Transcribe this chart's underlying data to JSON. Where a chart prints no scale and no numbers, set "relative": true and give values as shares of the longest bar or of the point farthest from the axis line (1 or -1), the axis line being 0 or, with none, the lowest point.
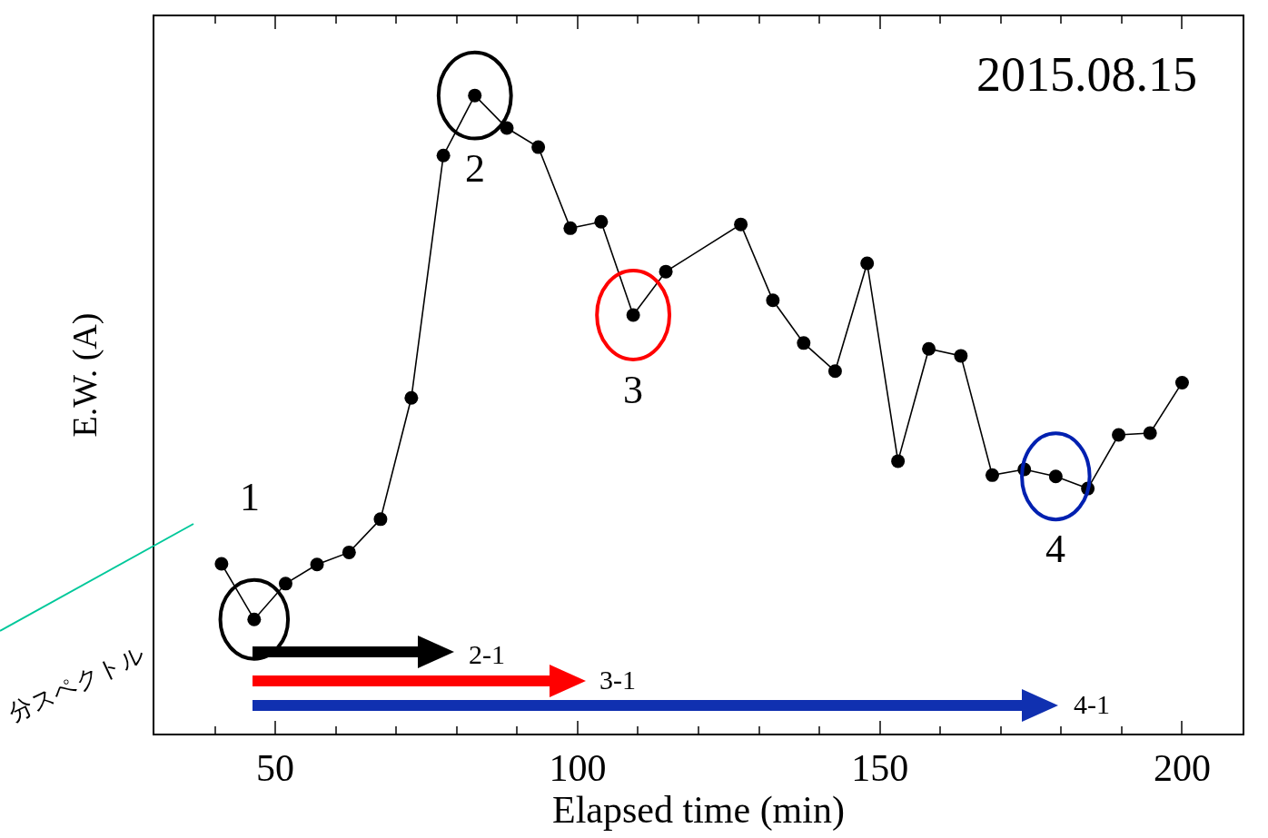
{
  "chart_data": {
    "type": "line",
    "relative": true,
    "xlabel": "Elapsed time (min)",
    "ylabel": "E.W. (A)",
    "x": [
      41.1,
      46.5,
      51.7,
      56.9,
      62.2,
      67.4,
      72.5,
      77.8,
      83.0,
      88.3,
      93.5,
      98.8,
      103.9,
      109.2,
      114.6,
      127.0,
      132.3,
      137.4,
      142.6,
      147.9,
      153.0,
      158.1,
      163.4,
      168.6,
      173.9,
      179.1,
      184.4,
      189.5,
      194.7,
      200
    ],
    "series": [
      {
        "color": "#000000",
        "values": [
          0.266,
          0.179,
          0.235,
          0.265,
          0.284,
          0.336,
          0.526,
          0.906,
          1,
          0.949,
          0.919,
          0.792,
          0.802,
          0.656,
          0.724,
          0.798,
          0.679,
          0.612,
          0.568,
          0.737,
          0.427,
          0.603,
          0.592,
          0.405,
          0.414,
          0.403,
          0.384,
          0.468,
          0.471,
          0.55
        ]
      }
    ],
    "xlim": [
      30,
      210
    ],
    "xticks": [
      50,
      100,
      150,
      200
    ],
    "tick_labels": "x",
    "grid": false,
    "marker": "circle",
    "line_style": "solid",
    "annotations": [
      "2015.08.15",
      {
        "text": "1",
        "x": 46.5,
        "y": 0.179
      },
      {
        "text": "2",
        "x": 83.0,
        "y": 1
      },
      {
        "text": "3",
        "x": 109.2,
        "y": 0.656
      },
      {
        "text": "4",
        "x": 179.1,
        "y": 0.403
      },
      "2-1",
      "3-1",
      "4-1",
      "分スペクトル"
    ]
  }
}
